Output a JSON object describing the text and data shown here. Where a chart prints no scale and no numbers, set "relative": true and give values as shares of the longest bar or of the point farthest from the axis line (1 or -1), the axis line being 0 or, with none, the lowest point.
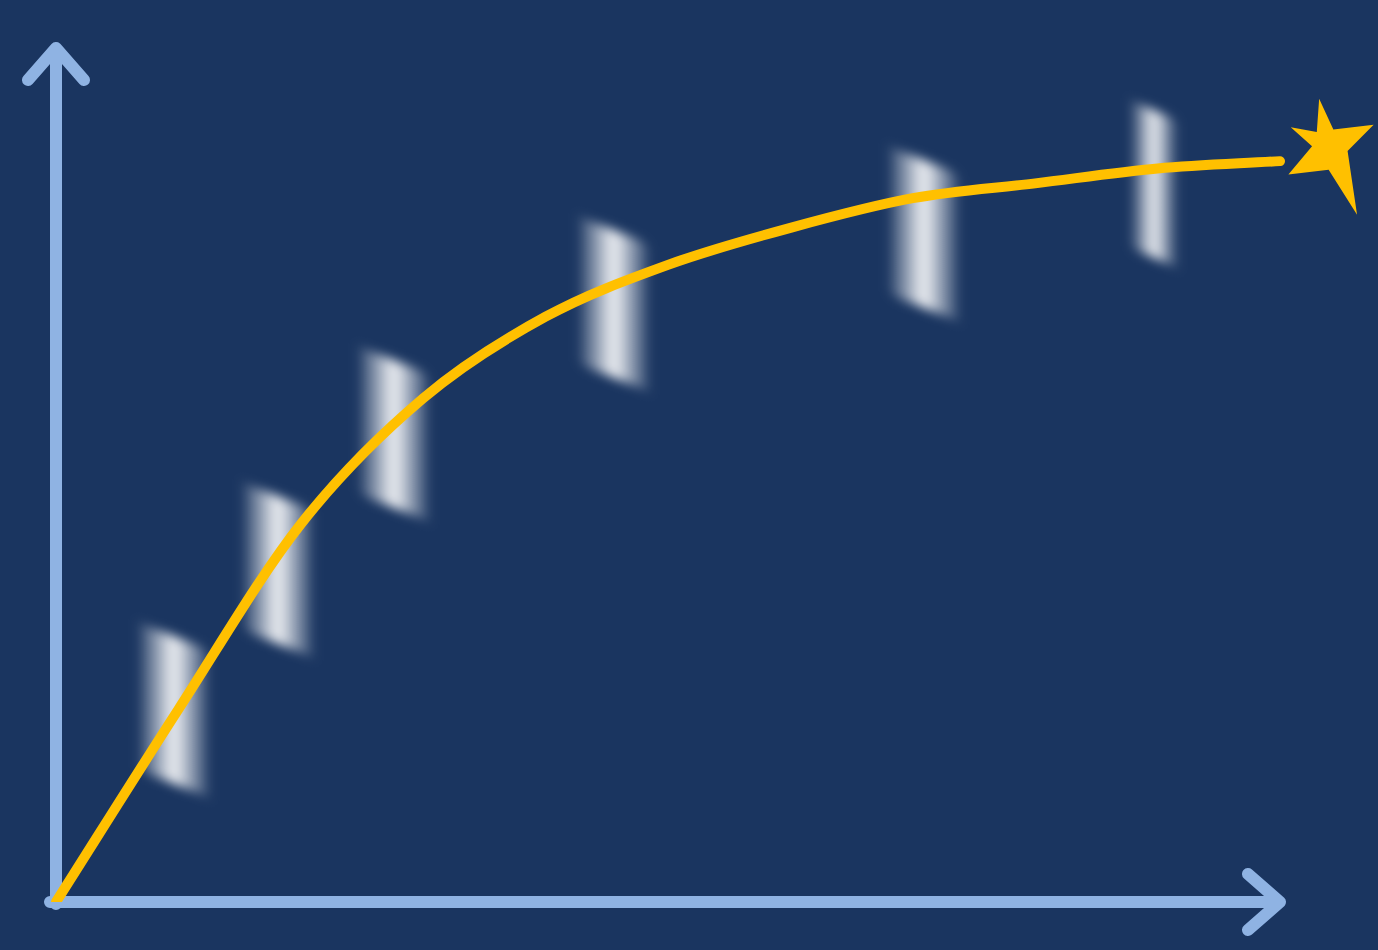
{
  "chart_data": {
    "type": "line",
    "relative": true,
    "categories": [
      null,
      null,
      null,
      null,
      null,
      null,
      null,
      null,
      null,
      null,
      null
    ],
    "series": [
      {
        "color": "#ffc000",
        "values": [
          0,
          0.26,
          0.51,
          0.68,
          0.79,
          0.86,
          0.91,
          0.95,
          0.97,
          0.99,
          1
        ]
      }
    ],
    "grid": false,
    "legend": false,
    "marker": "none",
    "line_style": "solid"
  }
}
